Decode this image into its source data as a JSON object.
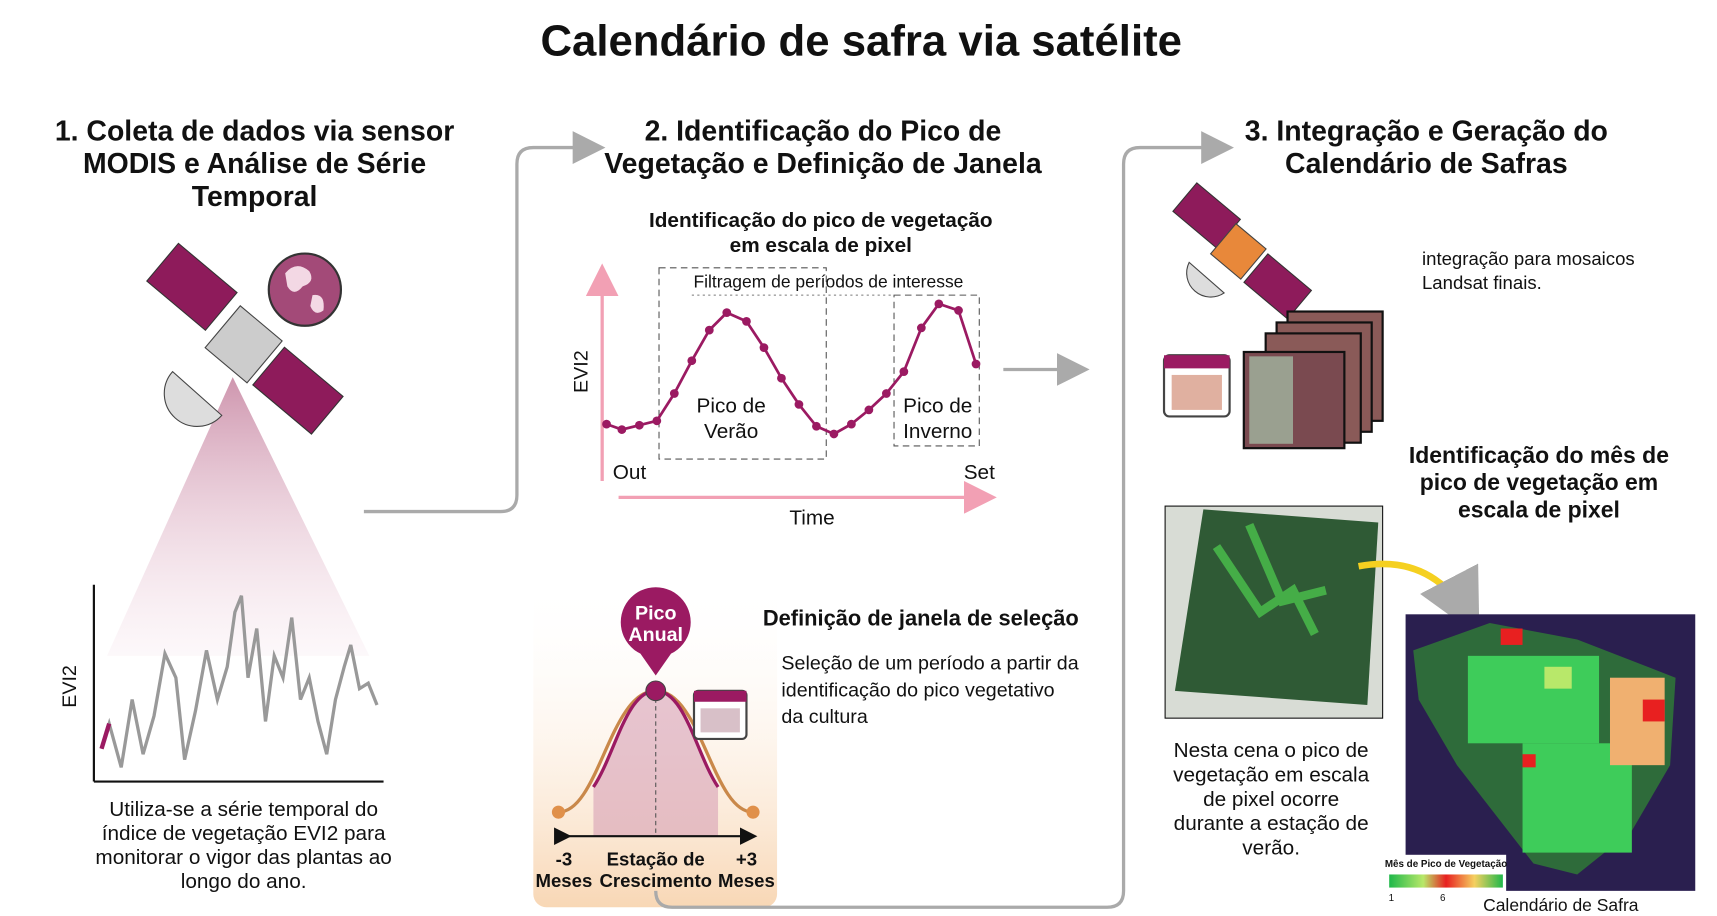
{
  "title": "Calendário de safra via satélite",
  "step1": {
    "heading": [
      "1. Coleta de dados via sensor",
      "MODIS e Análise de Série",
      "Temporal"
    ],
    "axis_label": "EVI2",
    "caption": [
      "Utiliza-se a série temporal do",
      "índice de vegetação EVI2 para",
      "monitorar o vigor das plantas ao",
      "longo do ano."
    ]
  },
  "step2": {
    "heading": [
      "2. Identificação do Pico de",
      "Vegetação e Definição de Janela"
    ],
    "chart_title": [
      "Identificação do pico de vegetação",
      "em escala de pixel"
    ],
    "filter_label": "Filtragem de períodos de interesse",
    "axis_label": "EVI2",
    "summer_peak": [
      "Pico de",
      "Verão"
    ],
    "winter_peak": [
      "Pico de",
      "Inverno"
    ],
    "x_start": "Out",
    "x_end": "Set",
    "x_label": "Time",
    "pin": [
      "Pico",
      "Anual"
    ],
    "window_title": "Definição de janela de seleção",
    "window_text": [
      "Seleção de um período a partir da",
      "identificação do pico vegetativo",
      "da cultura"
    ],
    "left_label": [
      "-3",
      "Meses"
    ],
    "center_label": [
      "Estação de",
      "Crescimento"
    ],
    "right_label": [
      "+3",
      "Meses"
    ]
  },
  "step3": {
    "heading": [
      "3. Integração e Geração do",
      "Calendário de Safras"
    ],
    "mosaic_text": [
      "integração para mosaicos",
      "Landsat finais."
    ],
    "peak_heading": [
      "Identificação do mês de",
      "pico de vegetação em",
      "escala de pixel"
    ],
    "caption": [
      "Nesta cena o pico de",
      "vegetação em escala",
      "de pixel ocorre",
      "durante a estação de",
      "verão."
    ],
    "legend_title": "Mês de Pico de Vegetação",
    "legend_min": 1,
    "legend_mid": 6,
    "map_caption": "Calendário de Safra"
  }
}
